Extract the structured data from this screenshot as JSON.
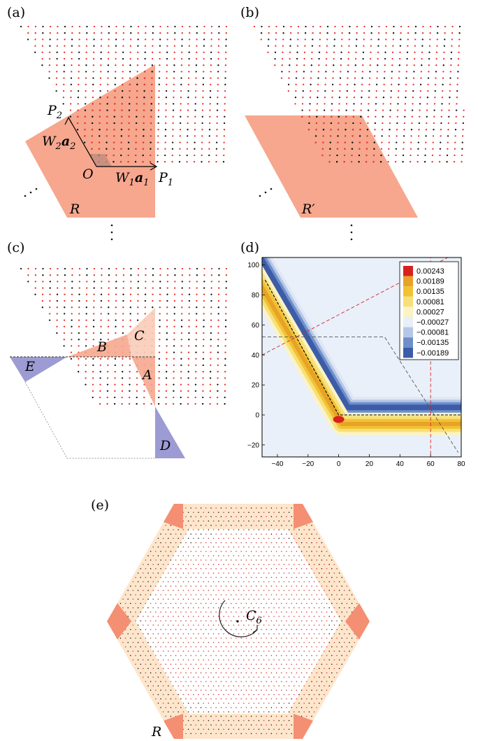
{
  "panels": {
    "a": {
      "label": "(a)",
      "P2": "P",
      "P2_sub": "2",
      "W2": "W",
      "W2_sub": "2",
      "a2": "a",
      "a2_sub": "2",
      "O": "O",
      "W1": "W",
      "W1_sub": "1",
      "a1": "a",
      "a1_sub": "1",
      "P1": "P",
      "P1_sub": "1",
      "R": "R"
    },
    "b": {
      "label": "(b)",
      "R": "R′"
    },
    "c": {
      "label": "(c)",
      "A": "A",
      "B": "B",
      "C": "C",
      "D": "D",
      "E": "E"
    },
    "d": {
      "label": "(d)"
    },
    "e": {
      "label": "(e)",
      "C": "C",
      "C_sub": "6",
      "R": "R"
    }
  },
  "colors": {
    "salmon": "#f6a78e",
    "light_salmon": "#f9cbb8",
    "peach": "#fde6cc",
    "violet": "#9d9bd3",
    "corner": "#f48f73",
    "red_dot": "#e8302a",
    "black_dot": "#111111"
  },
  "chart_data": {
    "type": "heatmap",
    "title": "",
    "xlabel": "",
    "ylabel": "",
    "xlim": [
      -50,
      80
    ],
    "ylim": [
      -28,
      105
    ],
    "x_ticks": [
      "-40",
      "-20",
      "0",
      "20",
      "40",
      "60",
      "80"
    ],
    "y_ticks": [
      "-20",
      "0",
      "20",
      "40",
      "60",
      "80",
      "100"
    ],
    "legend_position": "top-right",
    "legend": [
      "0.00243",
      "0.00189",
      "0.00135",
      "0.00081",
      "0.00027",
      "-0.00027",
      "-0.00081",
      "-0.00135",
      "-0.00189"
    ],
    "legend_colors": [
      "#d92020",
      "#e8a227",
      "#f1c232",
      "#f7e07a",
      "#fbf3c4",
      "#e8eff9",
      "#b4c7e6",
      "#6f8fcb",
      "#3d5ca8"
    ],
    "grid": false
  }
}
